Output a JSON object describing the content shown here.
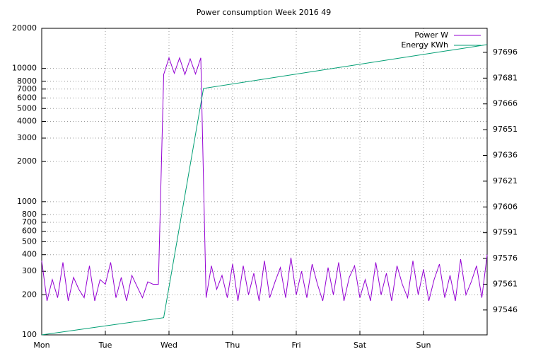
{
  "chart_data": {
    "type": "line",
    "title": "Power consumption Week 2016 49",
    "xlim": [
      0,
      168
    ],
    "xticks": [
      {
        "value": 0,
        "label": "Mon"
      },
      {
        "value": 24,
        "label": "Tue"
      },
      {
        "value": 48,
        "label": "Wed"
      },
      {
        "value": 72,
        "label": "Thu"
      },
      {
        "value": 96,
        "label": "Fri"
      },
      {
        "value": 120,
        "label": "Sat"
      },
      {
        "value": 144,
        "label": "Sun"
      }
    ],
    "ylim": [
      100,
      20000
    ],
    "log_y": true,
    "yticks": [
      100,
      200,
      300,
      400,
      500,
      600,
      700,
      800,
      1000,
      2000,
      3000,
      4000,
      5000,
      6000,
      7000,
      8000,
      10000,
      20000
    ],
    "y2lim": [
      97531.5,
      97710
    ],
    "y2ticks": [
      97546,
      97561,
      97576,
      97591,
      97606,
      97621,
      97636,
      97651,
      97666,
      97681,
      97696
    ],
    "grid": true,
    "legend": "top-right",
    "series": [
      {
        "name": "Power W",
        "color": "#9400d3",
        "x": [
          0,
          2,
          4,
          6,
          8,
          10,
          12,
          14,
          16,
          18,
          20,
          22,
          24,
          26,
          28,
          30,
          32,
          34,
          36,
          38,
          40,
          42,
          44,
          46,
          48,
          50,
          52,
          54,
          56,
          58,
          60,
          62,
          64,
          66,
          68,
          70,
          72,
          74,
          76,
          78,
          80,
          82,
          84,
          86,
          88,
          90,
          92,
          94,
          96,
          98,
          100,
          102,
          104,
          106,
          108,
          110,
          112,
          114,
          116,
          118,
          120,
          122,
          124,
          126,
          128,
          130,
          132,
          134,
          136,
          138,
          140,
          142,
          144,
          146,
          148,
          150,
          152,
          154,
          156,
          158,
          160,
          162,
          164,
          166,
          168
        ],
        "values": [
          360,
          180,
          260,
          190,
          350,
          180,
          270,
          220,
          190,
          330,
          180,
          260,
          240,
          350,
          190,
          270,
          180,
          280,
          230,
          190,
          250,
          240,
          240,
          9000,
          12000,
          9200,
          12000,
          9000,
          11800,
          9100,
          12000,
          190,
          330,
          220,
          280,
          190,
          340,
          180,
          330,
          200,
          290,
          180,
          360,
          190,
          250,
          320,
          190,
          380,
          200,
          300,
          190,
          340,
          240,
          180,
          320,
          200,
          350,
          180,
          270,
          330,
          190,
          260,
          180,
          350,
          200,
          290,
          180,
          330,
          240,
          190,
          360,
          200,
          310,
          180,
          260,
          340,
          190,
          280,
          180,
          370,
          200,
          250,
          330,
          190,
          400
        ]
      },
      {
        "name": "Energy KWh",
        "color": "#009e73",
        "axis": "y2",
        "x": [
          0,
          46,
          61,
          168
        ],
        "values": [
          97531.5,
          97541.5,
          97675,
          97700.5
        ]
      }
    ]
  }
}
